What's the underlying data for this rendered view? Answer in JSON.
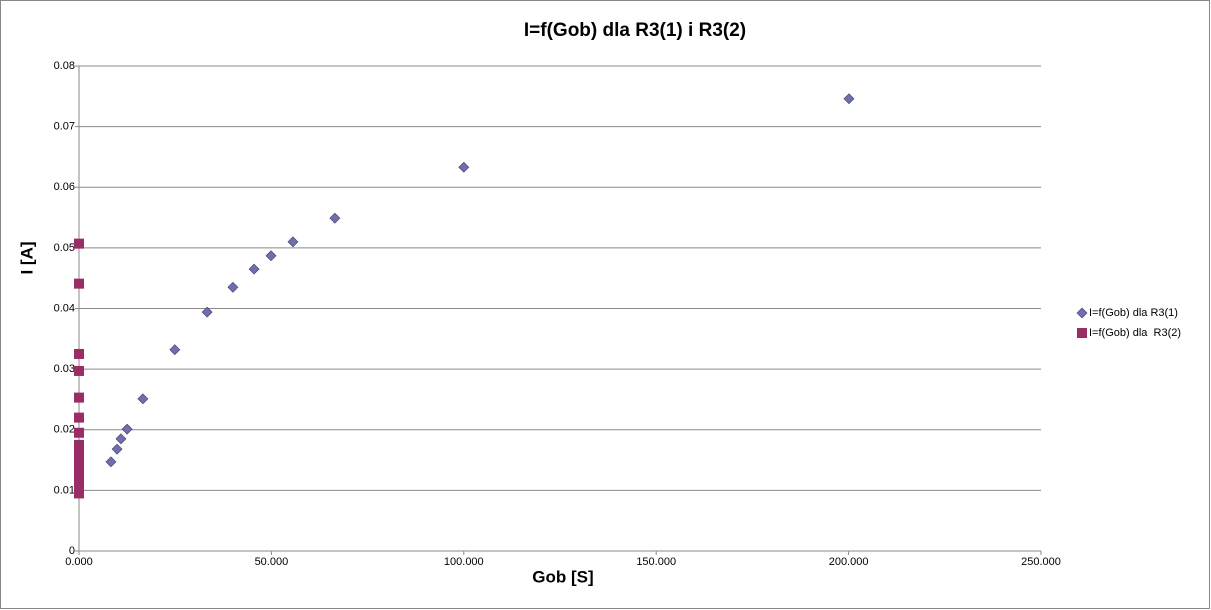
{
  "chart_data": {
    "type": "scatter",
    "title": "I=f(Gob) dla R3(1) i R3(2)",
    "x_label": "Gob [S]",
    "y_label": "I [A]",
    "xlim": [
      0,
      250
    ],
    "ylim": [
      0,
      0.08
    ],
    "xticks": [
      {
        "value": 0,
        "label": "0.000"
      },
      {
        "value": 50,
        "label": "50.000"
      },
      {
        "value": 100,
        "label": "100.000"
      },
      {
        "value": 150,
        "label": "150.000"
      },
      {
        "value": 200,
        "label": "200.000"
      },
      {
        "value": 250,
        "label": "250.000"
      }
    ],
    "yticks": [
      0,
      0.01,
      0.02,
      0.03,
      0.04,
      0.05,
      0.06,
      0.07,
      0.08
    ],
    "grid": true,
    "legend": "right",
    "series": [
      {
        "name": "I=f(Gob) dla R3(1)",
        "color": "#6f6fae",
        "marker": "diamond",
        "x": [
          8.3,
          9.9,
          10.9,
          12.5,
          16.6,
          24.9,
          33.3,
          40.0,
          45.5,
          49.9,
          55.6,
          66.5,
          100.0,
          200.1
        ],
        "values": [
          0.0147,
          0.0168,
          0.0185,
          0.0201,
          0.0251,
          0.0332,
          0.0394,
          0.0435,
          0.0465,
          0.0487,
          0.051,
          0.0549,
          0.0633,
          0.0746
        ]
      },
      {
        "name": "I=f(Gob) dla  R3(2)",
        "color": "#9b2d66",
        "marker": "square",
        "x": [
          0,
          0,
          0,
          0,
          0,
          0,
          0,
          0,
          0,
          0,
          0,
          0,
          0,
          0,
          0
        ],
        "values": [
          0.0095,
          0.0105,
          0.0115,
          0.0125,
          0.0135,
          0.0145,
          0.016,
          0.0175,
          0.0195,
          0.022,
          0.0253,
          0.0297,
          0.0325,
          0.0441,
          0.0507
        ]
      }
    ]
  }
}
